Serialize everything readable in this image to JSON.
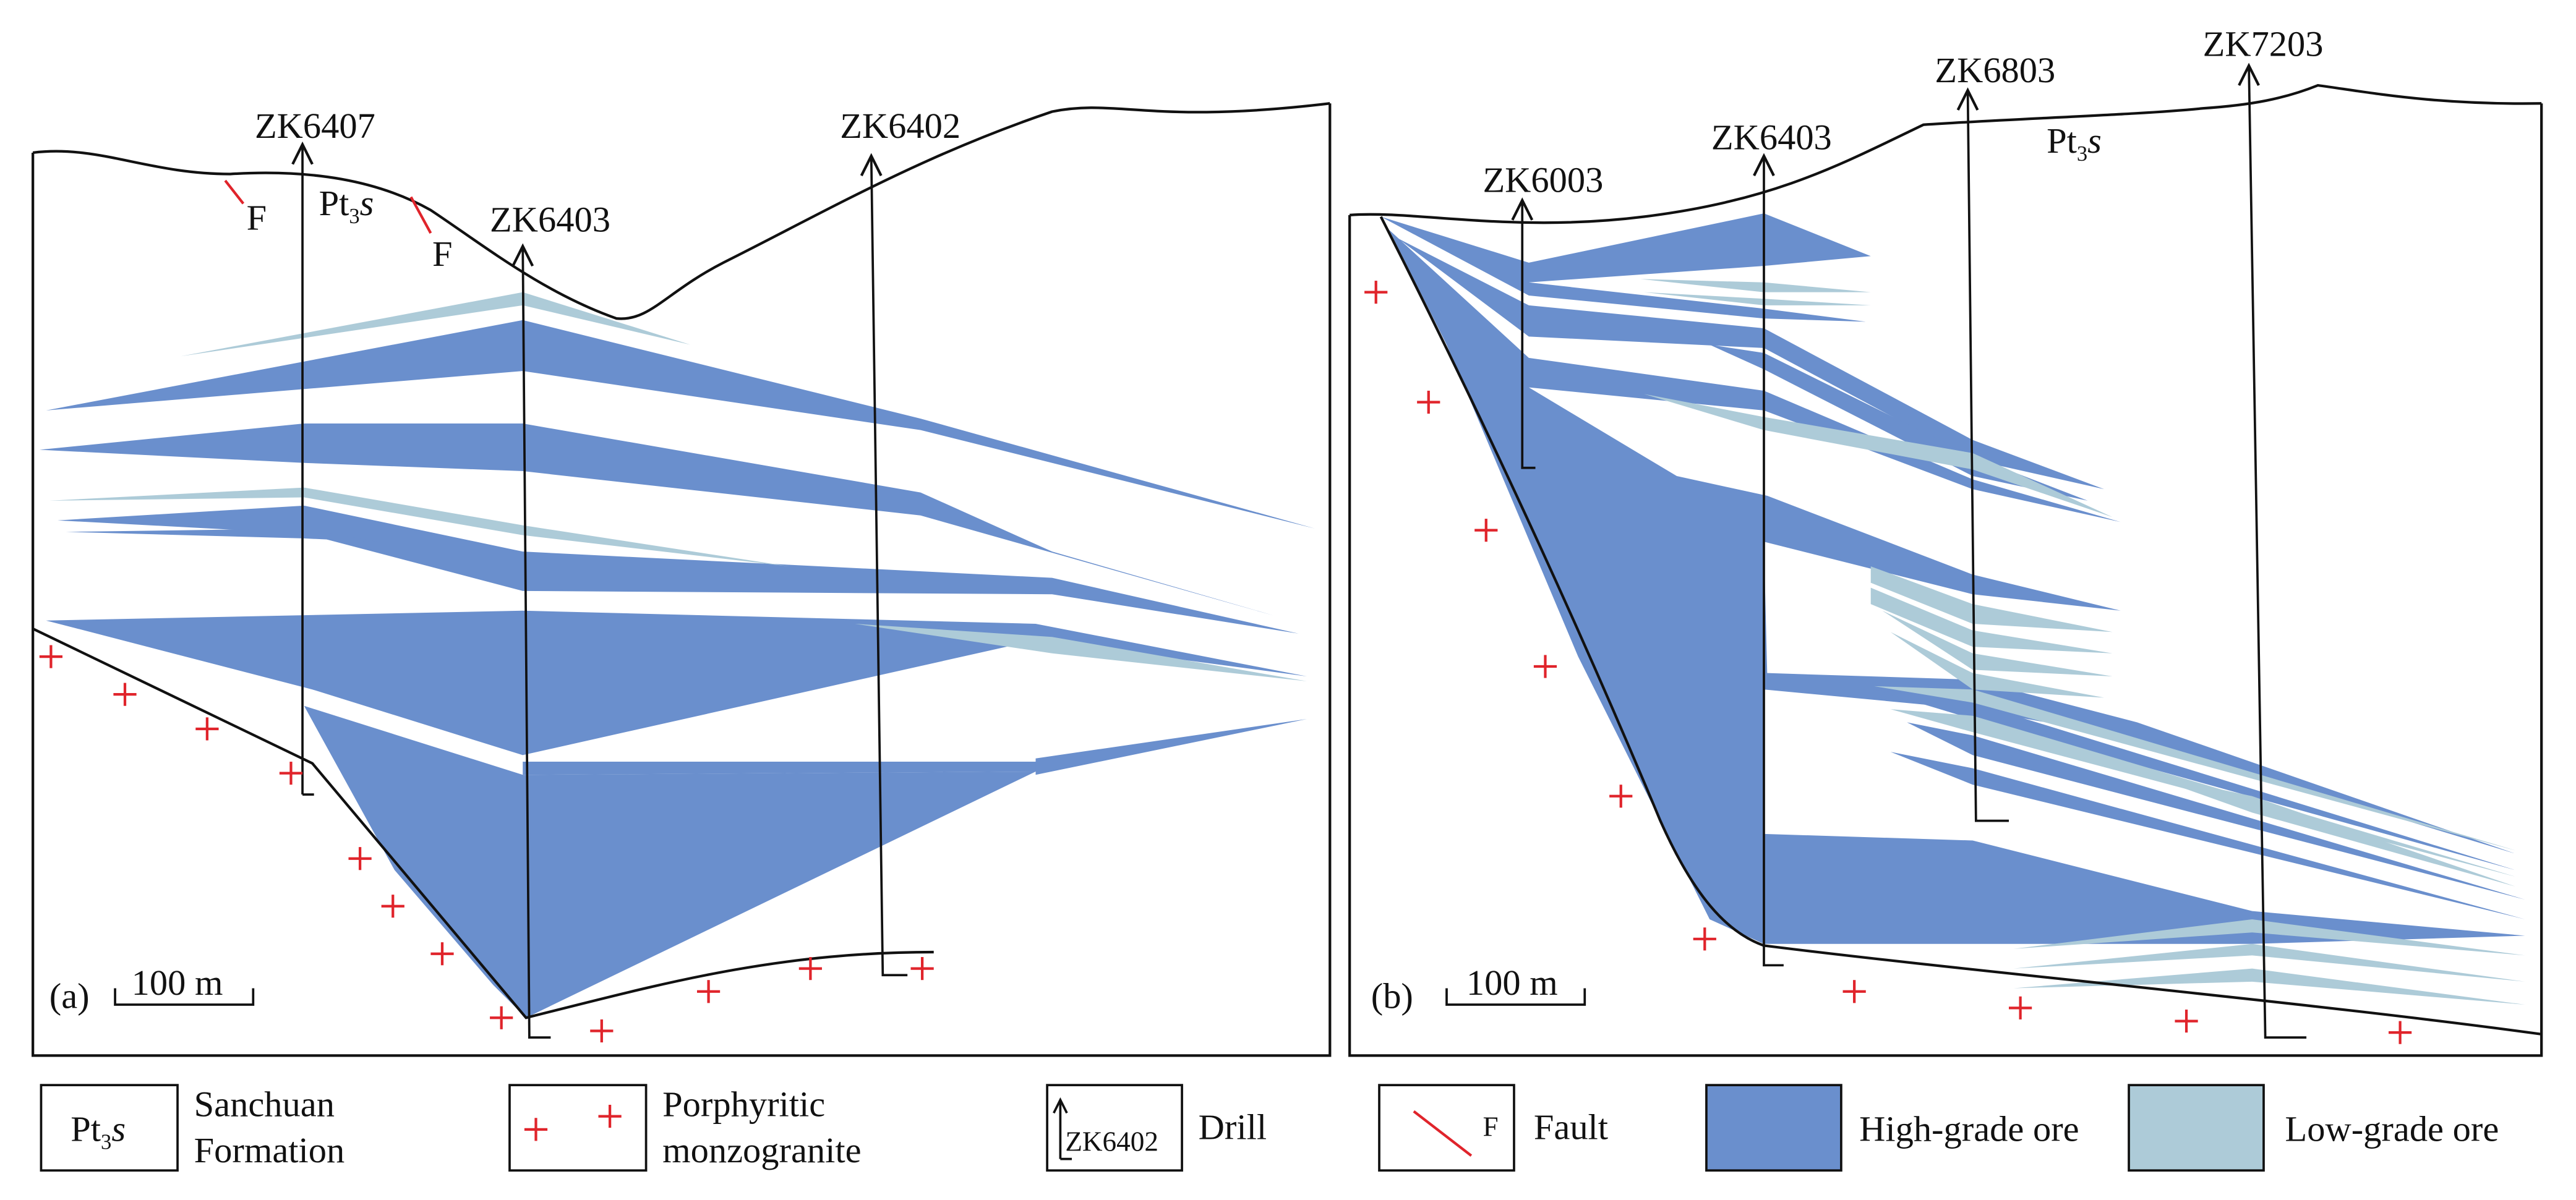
{
  "figure": {
    "colors": {
      "high_grade": "#6a8fcd",
      "low_grade": "#adcbd8",
      "fault": "#e0242b",
      "granite": "#e0242b",
      "line": "#111111"
    },
    "panel_a": {
      "tag": "(a)",
      "scale_label": "100 m",
      "formation": {
        "main": "Pt",
        "sub": "3",
        "italic": "s"
      },
      "fault_labels": [
        "F",
        "F"
      ],
      "drills": [
        "ZK6407",
        "ZK6403",
        "ZK6402"
      ]
    },
    "panel_b": {
      "tag": "(b)",
      "scale_label": "100 m",
      "formation": {
        "main": "Pt",
        "sub": "3",
        "italic": "s"
      },
      "drills": [
        "ZK6003",
        "ZK6403",
        "ZK6803",
        "ZK7203"
      ]
    },
    "legend": {
      "sanchuan": {
        "symbol_main": "Pt",
        "symbol_sub": "3",
        "symbol_italic": "s",
        "line1": "Sanchuan",
        "line2": "Formation"
      },
      "granite": {
        "line1": "Porphyritic",
        "line2": "monzogranite"
      },
      "drill": {
        "sample": "ZK6402",
        "label": "Drill"
      },
      "fault": {
        "symbol": "F",
        "label": "Fault"
      },
      "high": {
        "label": "High-grade ore"
      },
      "low": {
        "label": "Low-grade ore"
      }
    }
  }
}
